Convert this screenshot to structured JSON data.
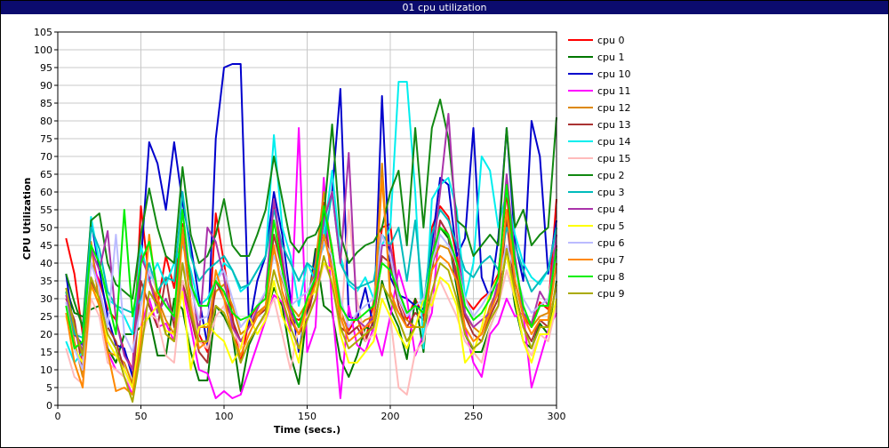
{
  "window": {
    "title": "01 cpu utilization"
  },
  "chart_data": {
    "type": "line",
    "title": "01 cpu utilization",
    "xlabel": "Time (secs.)",
    "ylabel": "CPU Utilization",
    "xlim": [
      0,
      300
    ],
    "ylim": [
      0,
      105
    ],
    "x_ticks": [
      0,
      50,
      100,
      150,
      200,
      250,
      300
    ],
    "y_ticks": [
      0,
      5,
      10,
      15,
      20,
      25,
      30,
      35,
      40,
      45,
      50,
      55,
      60,
      65,
      70,
      75,
      80,
      85,
      90,
      95,
      100,
      105
    ],
    "grid": true,
    "legend_position": "right",
    "x": [
      5,
      10,
      15,
      20,
      25,
      30,
      35,
      40,
      45,
      50,
      55,
      60,
      65,
      70,
      75,
      80,
      85,
      90,
      95,
      100,
      105,
      110,
      115,
      120,
      125,
      130,
      135,
      140,
      145,
      150,
      155,
      160,
      165,
      170,
      175,
      180,
      185,
      190,
      195,
      200,
      205,
      210,
      215,
      220,
      225,
      230,
      235,
      240,
      245,
      250,
      255,
      260,
      265,
      270,
      275,
      280,
      285,
      290,
      295,
      300
    ],
    "series": [
      {
        "name": "cpu 0",
        "color": "#ff0000",
        "values": [
          47,
          37,
          20,
          40,
          35,
          27,
          24,
          15,
          10,
          56,
          35,
          28,
          42,
          33,
          51,
          29,
          20,
          15,
          54,
          40,
          25,
          12,
          24,
          28,
          30,
          57,
          40,
          25,
          24,
          26,
          37,
          57,
          44,
          26,
          21,
          25,
          18,
          29,
          50,
          51,
          30,
          24,
          30,
          25,
          50,
          56,
          53,
          42,
          30,
          27,
          30,
          32,
          37,
          60,
          35,
          25,
          22,
          29,
          27,
          58
        ]
      },
      {
        "name": "cpu 1",
        "color": "#007700",
        "values": [
          33,
          26,
          25,
          27,
          28,
          16,
          12,
          20,
          20,
          22,
          25,
          14,
          14,
          30,
          27,
          15,
          7,
          7,
          28,
          25,
          20,
          4,
          17,
          22,
          26,
          33,
          28,
          14,
          6,
          27,
          44,
          28,
          26,
          13,
          8,
          14,
          22,
          21,
          35,
          27,
          22,
          13,
          30,
          15,
          42,
          50,
          47,
          33,
          20,
          15,
          15,
          22,
          28,
          44,
          28,
          18,
          16,
          23,
          20,
          35
        ]
      },
      {
        "name": "cpu 10",
        "color": "#0000cc",
        "values": [
          37,
          20,
          17,
          52,
          38,
          25,
          17,
          16,
          8,
          40,
          74,
          68,
          55,
          74,
          57,
          45,
          30,
          17,
          75,
          95,
          96,
          96,
          22,
          35,
          42,
          60,
          48,
          30,
          15,
          28,
          42,
          52,
          60,
          89,
          25,
          24,
          33,
          22,
          87,
          36,
          31,
          30,
          28,
          27,
          45,
          64,
          62,
          42,
          47,
          78,
          36,
          30,
          47,
          78,
          46,
          35,
          80,
          70,
          37,
          52
        ]
      },
      {
        "name": "cpu 11",
        "color": "#ff00ff",
        "values": [
          28,
          22,
          12,
          44,
          33,
          15,
          10,
          8,
          3,
          22,
          30,
          22,
          23,
          18,
          33,
          22,
          10,
          9,
          2,
          4,
          2,
          3,
          10,
          17,
          24,
          31,
          29,
          21,
          78,
          15,
          22,
          64,
          28,
          2,
          28,
          17,
          15,
          22,
          14,
          25,
          38,
          30,
          14,
          20,
          26,
          52,
          48,
          35,
          22,
          12,
          8,
          20,
          23,
          30,
          25,
          26,
          5,
          13,
          21,
          26
        ]
      },
      {
        "name": "cpu 12",
        "color": "#dd8800",
        "values": [
          32,
          18,
          8,
          46,
          28,
          15,
          14,
          12,
          6,
          44,
          35,
          30,
          24,
          20,
          50,
          28,
          22,
          22,
          32,
          34,
          28,
          20,
          22,
          26,
          28,
          44,
          35,
          28,
          25,
          29,
          40,
          60,
          42,
          27,
          20,
          22,
          24,
          25,
          68,
          30,
          26,
          24,
          22,
          22,
          40,
          45,
          44,
          38,
          25,
          22,
          20,
          28,
          33,
          54,
          40,
          26,
          22,
          25,
          26,
          40
        ]
      },
      {
        "name": "cpu 13",
        "color": "#aa3333",
        "values": [
          30,
          24,
          10,
          35,
          30,
          22,
          18,
          10,
          5,
          35,
          28,
          22,
          36,
          22,
          35,
          25,
          15,
          12,
          35,
          30,
          24,
          18,
          22,
          25,
          27,
          48,
          38,
          24,
          20,
          24,
          35,
          52,
          38,
          22,
          20,
          22,
          18,
          24,
          42,
          40,
          28,
          22,
          26,
          24,
          38,
          52,
          48,
          36,
          25,
          20,
          18,
          25,
          30,
          52,
          32,
          22,
          18,
          24,
          22,
          45
        ]
      },
      {
        "name": "cpu 14",
        "color": "#00eeee",
        "values": [
          18,
          12,
          15,
          53,
          40,
          30,
          28,
          25,
          20,
          45,
          35,
          40,
          34,
          40,
          45,
          38,
          28,
          30,
          35,
          40,
          38,
          32,
          34,
          38,
          42,
          76,
          50,
          42,
          28,
          40,
          35,
          48,
          66,
          42,
          34,
          32,
          36,
          30,
          45,
          50,
          91,
          91,
          60,
          16,
          58,
          62,
          64,
          55,
          30,
          40,
          70,
          66,
          50,
          60,
          48,
          40,
          36,
          34,
          38,
          50
        ]
      },
      {
        "name": "cpu 15",
        "color": "#ffbbbb",
        "values": [
          16,
          8,
          6,
          30,
          25,
          12,
          10,
          8,
          5,
          18,
          26,
          24,
          14,
          12,
          35,
          30,
          18,
          16,
          25,
          28,
          22,
          16,
          18,
          22,
          25,
          30,
          20,
          10,
          23,
          25,
          30,
          40,
          35,
          20,
          55,
          30,
          18,
          20,
          30,
          25,
          5,
          3,
          15,
          18,
          30,
          35,
          30,
          25,
          18,
          15,
          12,
          22,
          28,
          38,
          30,
          18,
          14,
          20,
          18,
          28
        ]
      },
      {
        "name": "cpu 2",
        "color": "#118811",
        "values": [
          37,
          29,
          22,
          52,
          54,
          40,
          34,
          32,
          30,
          48,
          61,
          50,
          42,
          40,
          67,
          48,
          40,
          42,
          48,
          58,
          45,
          42,
          42,
          48,
          55,
          70,
          58,
          46,
          43,
          47,
          48,
          53,
          79,
          48,
          40,
          43,
          45,
          46,
          50,
          60,
          66,
          45,
          78,
          50,
          78,
          86,
          75,
          52,
          50,
          42,
          45,
          48,
          45,
          78,
          50,
          55,
          45,
          48,
          50,
          81
        ]
      },
      {
        "name": "cpu 3",
        "color": "#00bbbb",
        "values": [
          32,
          20,
          19,
          50,
          44,
          32,
          28,
          27,
          26,
          30,
          40,
          32,
          36,
          35,
          60,
          42,
          35,
          38,
          40,
          42,
          38,
          33,
          34,
          38,
          42,
          55,
          45,
          40,
          35,
          40,
          38,
          45,
          60,
          40,
          35,
          33,
          34,
          35,
          48,
          45,
          50,
          35,
          52,
          28,
          48,
          55,
          52,
          45,
          38,
          36,
          40,
          42,
          38,
          50,
          45,
          38,
          32,
          35,
          38,
          50
        ]
      },
      {
        "name": "cpu 4",
        "color": "#aa33aa",
        "values": [
          31,
          22,
          15,
          44,
          38,
          49,
          24,
          14,
          10,
          42,
          36,
          26,
          30,
          24,
          48,
          36,
          20,
          50,
          46,
          36,
          22,
          18,
          22,
          27,
          32,
          58,
          42,
          26,
          22,
          28,
          38,
          52,
          60,
          40,
          71,
          24,
          22,
          25,
          45,
          45,
          32,
          26,
          28,
          26,
          40,
          60,
          82,
          48,
          26,
          22,
          24,
          26,
          35,
          65,
          42,
          26,
          23,
          32,
          28,
          48
        ]
      },
      {
        "name": "cpu 5",
        "color": "#ffff00",
        "values": [
          25,
          16,
          12,
          33,
          30,
          18,
          14,
          10,
          5,
          22,
          25,
          28,
          21,
          20,
          32,
          10,
          22,
          23,
          20,
          18,
          12,
          16,
          25,
          20,
          24,
          35,
          25,
          20,
          12,
          30,
          32,
          40,
          38,
          20,
          12,
          12,
          15,
          18,
          30,
          25,
          20,
          16,
          22,
          30,
          28,
          36,
          34,
          28,
          12,
          15,
          22,
          32,
          36,
          42,
          30,
          18,
          12,
          20,
          20,
          30
        ]
      },
      {
        "name": "cpu 6",
        "color": "#bbbbff",
        "values": [
          29,
          16,
          10,
          40,
          33,
          22,
          48,
          20,
          15,
          28,
          38,
          32,
          28,
          25,
          40,
          33,
          24,
          25,
          35,
          38,
          30,
          22,
          25,
          28,
          32,
          42,
          36,
          28,
          30,
          32,
          36,
          46,
          42,
          30,
          22,
          26,
          28,
          30,
          48,
          42,
          30,
          25,
          28,
          30,
          40,
          48,
          45,
          40,
          30,
          25,
          28,
          32,
          35,
          45,
          38,
          30,
          26,
          28,
          30,
          42
        ]
      },
      {
        "name": "cpu 7",
        "color": "#ff8800",
        "values": [
          26,
          12,
          5,
          34,
          28,
          15,
          4,
          5,
          3,
          18,
          48,
          30,
          20,
          18,
          48,
          28,
          16,
          18,
          38,
          30,
          20,
          14,
          20,
          25,
          28,
          45,
          32,
          25,
          20,
          28,
          34,
          48,
          38,
          25,
          18,
          20,
          22,
          24,
          64,
          32,
          26,
          22,
          22,
          22,
          38,
          42,
          40,
          35,
          22,
          18,
          20,
          26,
          32,
          55,
          35,
          25,
          20,
          24,
          24,
          40
        ]
      },
      {
        "name": "cpu 8",
        "color": "#00ee00",
        "values": [
          28,
          16,
          18,
          45,
          40,
          30,
          20,
          55,
          25,
          40,
          46,
          32,
          28,
          25,
          55,
          34,
          28,
          28,
          35,
          32,
          26,
          24,
          25,
          28,
          30,
          52,
          38,
          28,
          22,
          30,
          36,
          56,
          44,
          28,
          24,
          24,
          26,
          28,
          40,
          38,
          32,
          26,
          28,
          26,
          42,
          50,
          48,
          40,
          28,
          24,
          26,
          30,
          36,
          62,
          40,
          28,
          22,
          28,
          28,
          44
        ]
      },
      {
        "name": "cpu 9",
        "color": "#aaaa00",
        "values": [
          33,
          22,
          14,
          36,
          30,
          20,
          16,
          8,
          1,
          15,
          32,
          28,
          20,
          18,
          40,
          26,
          18,
          18,
          28,
          26,
          20,
          12,
          18,
          22,
          26,
          38,
          30,
          22,
          16,
          24,
          30,
          42,
          34,
          22,
          16,
          18,
          20,
          22,
          34,
          30,
          24,
          18,
          22,
          22,
          32,
          40,
          38,
          30,
          20,
          16,
          18,
          24,
          28,
          44,
          32,
          22,
          16,
          22,
          22,
          34
        ]
      }
    ]
  }
}
